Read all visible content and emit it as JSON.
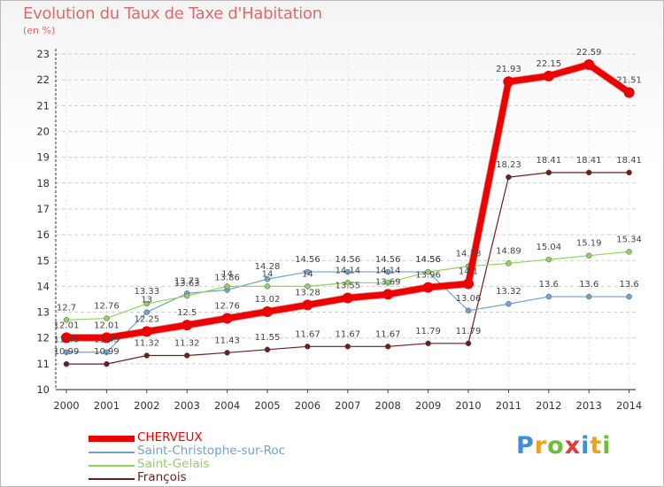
{
  "title": "Evolution du Taux de Taxe d'Habitation",
  "unit_label": "(en %)",
  "logo": {
    "letters": [
      "P",
      "r",
      "o",
      "x",
      "i",
      "t",
      "i"
    ],
    "colors": [
      "#3d8fd6",
      "#f0a21a",
      "#6bbf3a",
      "#e23a3a",
      "#3d8fd6",
      "#f0a21a",
      "#6bbf3a"
    ]
  },
  "chart_data": {
    "type": "line",
    "title": "Evolution du Taux de Taxe d'Habitation",
    "ylabel": "(en %)",
    "xlabel": "",
    "x": [
      "2000",
      "2001",
      "2002",
      "2003",
      "2004",
      "2005",
      "2006",
      "2007",
      "2008",
      "2009",
      "2010",
      "2011",
      "2012",
      "2013",
      "2014"
    ],
    "ylim": [
      10,
      23
    ],
    "yticks": [
      "10",
      "11",
      "12",
      "13",
      "14",
      "15",
      "16",
      "17",
      "18",
      "19",
      "20",
      "21",
      "22",
      "23"
    ],
    "grid": "horizontal dashed",
    "legend_position": "bottom-left",
    "series": [
      {
        "name": "CHERVEUX",
        "color": "#ee0000",
        "width": 7,
        "marker": 6,
        "values": [
          12.01,
          12.01,
          12.25,
          12.5,
          12.76,
          13.02,
          13.28,
          13.55,
          13.69,
          13.96,
          14.1,
          21.93,
          22.15,
          22.59,
          21.51
        ],
        "labels": [
          "12.01",
          "12.01",
          "12.25",
          "12.5",
          "12.76",
          "13.02",
          "13.28",
          "13.55",
          "13.69",
          "13.96",
          "14.1",
          "21.93",
          "22.15",
          "22.59",
          "21.51"
        ]
      },
      {
        "name": "Saint-Christophe-sur-Roc",
        "color": "#6ea3d2",
        "width": 1.2,
        "marker": 3,
        "values": [
          11.45,
          11.45,
          13.0,
          13.73,
          13.86,
          14.28,
          14.56,
          14.56,
          14.56,
          14.56,
          13.06,
          13.32,
          13.6,
          13.6,
          13.6
        ],
        "labels": [
          "11.45",
          "11.45",
          "13",
          "13.73",
          "13.86",
          "14.28",
          "14.56",
          "14.56",
          "14.56",
          "14.56",
          "13.06",
          "13.32",
          "13.6",
          "13.6",
          "13.6"
        ]
      },
      {
        "name": "Saint-Gelais",
        "color": "#92d060",
        "width": 1.2,
        "marker": 3,
        "values": [
          12.7,
          12.76,
          13.33,
          13.63,
          14.0,
          14.0,
          14.0,
          14.14,
          14.14,
          14.56,
          14.78,
          14.89,
          15.04,
          15.19,
          15.34
        ],
        "labels": [
          "12.7",
          "12.76",
          "13.33",
          "13.63",
          "14",
          "14",
          "14",
          "14.14",
          "14.14",
          "14.56",
          "14.78",
          "14.89",
          "15.04",
          "15.19",
          "15.34"
        ]
      },
      {
        "name": "François",
        "color": "#6b1e1e",
        "width": 1.2,
        "marker": 3,
        "values": [
          10.99,
          10.99,
          11.32,
          11.32,
          11.43,
          11.55,
          11.67,
          11.67,
          11.67,
          11.79,
          11.79,
          18.23,
          18.41,
          18.41,
          18.41
        ],
        "labels": [
          "10.99",
          "10.99",
          "11.32",
          "11.32",
          "11.43",
          "11.55",
          "11.67",
          "11.67",
          "11.67",
          "11.79",
          "11.79",
          "18.23",
          "18.41",
          "18.41",
          "18.41"
        ]
      }
    ]
  }
}
